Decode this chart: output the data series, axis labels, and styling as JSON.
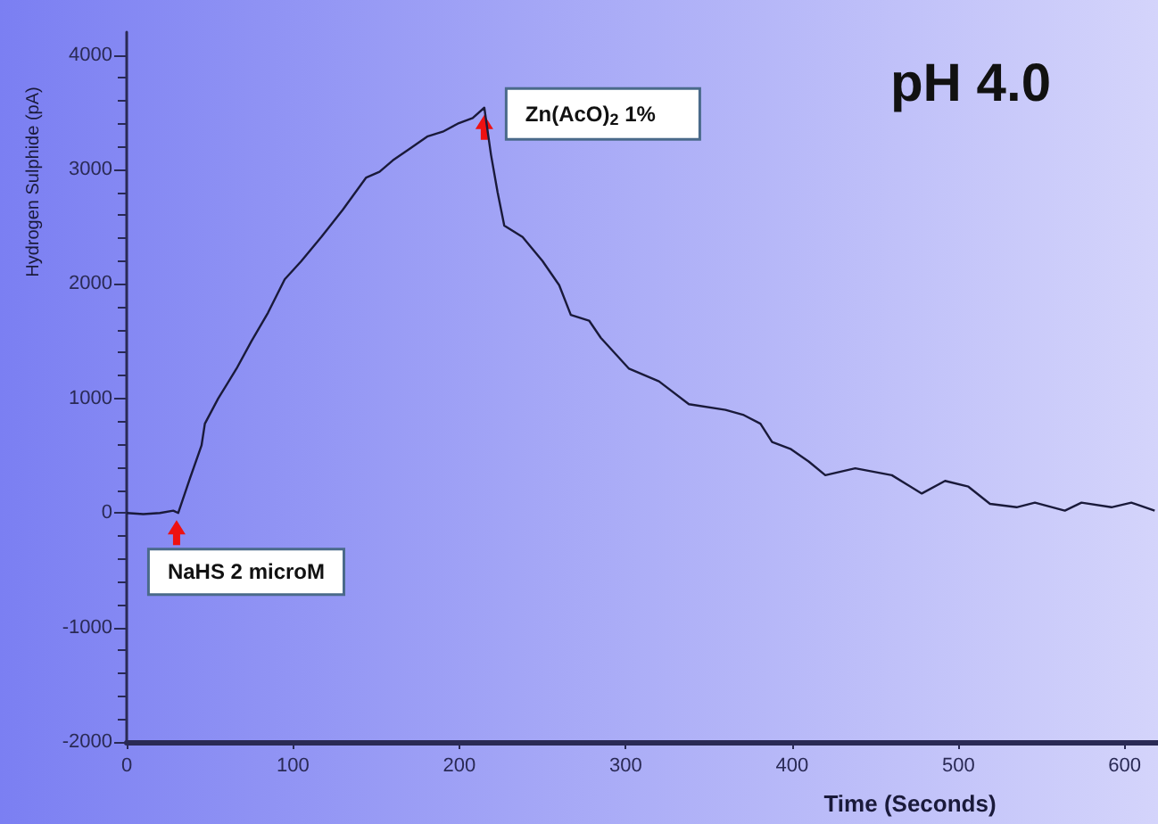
{
  "chart_data": {
    "type": "line",
    "xlabel": "Time (Seconds)",
    "ylabel": "Hydrogen Sulphide (pA)",
    "series": [
      {
        "color": "#1a1a3a",
        "x": [
          0,
          10,
          20,
          28,
          31,
          38,
          45,
          47,
          55,
          66,
          75,
          85,
          95,
          105,
          117,
          130,
          144,
          152,
          160,
          170,
          181,
          190,
          199,
          208,
          215,
          219,
          223,
          227,
          238,
          250,
          260,
          267,
          278,
          285,
          302,
          320,
          338,
          360,
          371,
          381,
          388,
          399,
          410,
          420,
          438,
          460,
          478,
          492,
          506,
          519,
          535,
          546,
          564,
          574,
          592,
          604,
          618
        ],
        "values": [
          0,
          -10,
          0,
          20,
          0,
          300,
          590,
          780,
          1000,
          1260,
          1500,
          1750,
          2040,
          2200,
          2410,
          2650,
          2930,
          2980,
          3080,
          3180,
          3290,
          3330,
          3400,
          3450,
          3540,
          3130,
          2800,
          2510,
          2410,
          2200,
          1990,
          1730,
          1680,
          1530,
          1260,
          1150,
          950,
          900,
          855,
          780,
          620,
          560,
          450,
          330,
          390,
          330,
          170,
          280,
          230,
          80,
          50,
          90,
          20,
          90,
          50,
          90,
          20
        ]
      }
    ],
    "xlim": [
      0,
      620
    ],
    "xticks": [
      0,
      100,
      200,
      300,
      400,
      500,
      600
    ],
    "ylim": [
      -2000,
      4200
    ],
    "yticks": [
      -2000,
      -1000,
      0,
      1000,
      2000,
      3000,
      4000
    ],
    "grid": false,
    "marker": "none",
    "line_style": "solid",
    "annotations": [
      {
        "text": "NaHS 2 microM",
        "x": 30,
        "y": 0
      },
      {
        "text": "Zn(AcO)$_{2}$ 1%",
        "x": 215,
        "y": 3540
      },
      "pH 4.0"
    ]
  }
}
